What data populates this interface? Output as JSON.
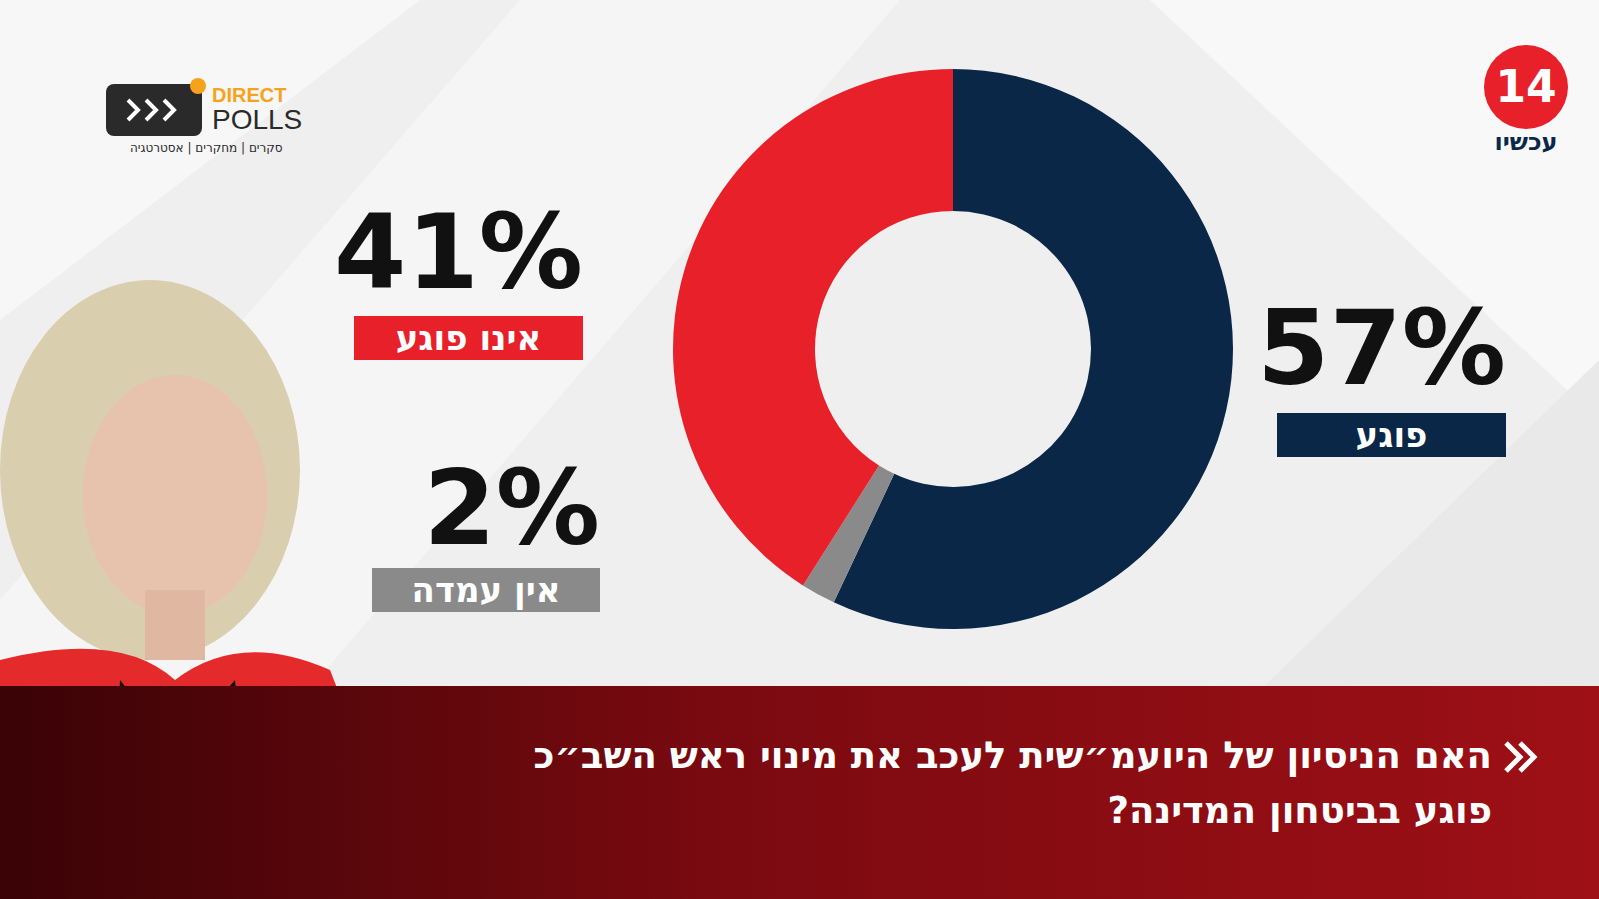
{
  "chart_data": {
    "type": "pie",
    "title": "האם הניסיון של היועמ״שית לעכב את מינוי ראש השב״כ פוגע בביטחון המדינה?",
    "categories": [
      "פוגע",
      "אין עמדה",
      "אינו פוגע"
    ],
    "values": [
      57,
      2,
      41
    ],
    "value_labels": [
      "57%",
      "2%",
      "41%"
    ],
    "colors": [
      "#0b2748",
      "#8a8a8a",
      "#e8202a"
    ],
    "data_labels": true,
    "annotations": [
      "DIRECT",
      "POLLS",
      "סקרים | מחקרים | אסטרטגיה",
      "14",
      "עכשיו"
    ]
  }
}
